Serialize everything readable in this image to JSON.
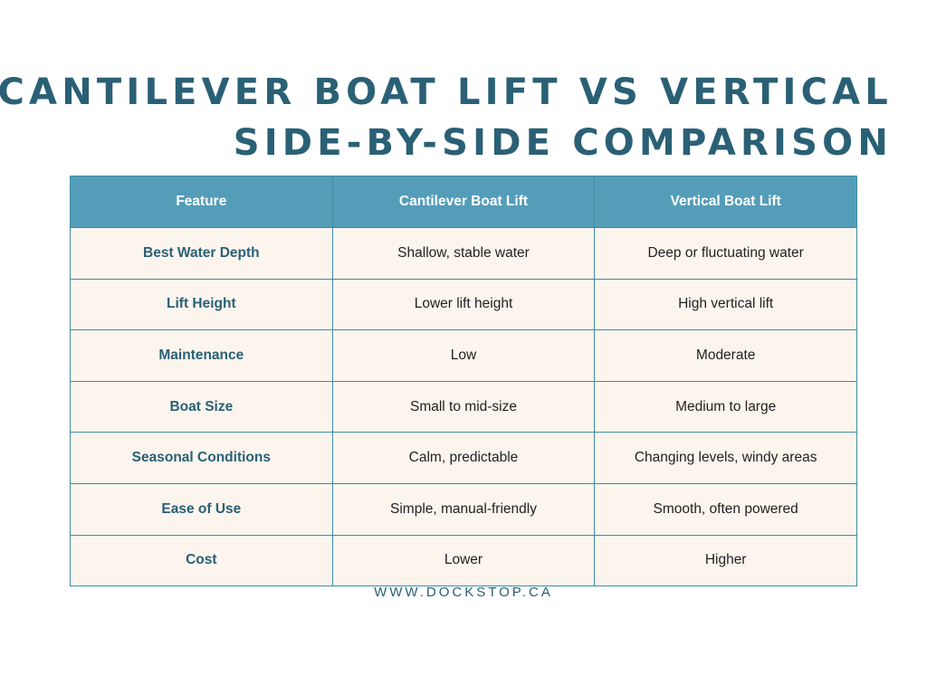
{
  "title": {
    "line1": "CANTILEVER BOAT LIFT VS VERTICAL",
    "line2": "SIDE-BY-SIDE COMPARISON"
  },
  "table": {
    "headers": [
      "Feature",
      "Cantilever Boat Lift",
      "Vertical Boat Lift"
    ],
    "rows": [
      [
        "Best Water Depth",
        "Shallow, stable water",
        "Deep or fluctuating water"
      ],
      [
        "Lift Height",
        "Lower lift height",
        "High vertical lift"
      ],
      [
        "Maintenance",
        "Low",
        "Moderate"
      ],
      [
        "Boat Size",
        "Small to mid-size",
        "Medium to large"
      ],
      [
        "Seasonal Conditions",
        "Calm, predictable",
        "Changing levels, windy areas"
      ],
      [
        "Ease of Use",
        "Simple, manual-friendly",
        "Smooth, often powered"
      ],
      [
        "Cost",
        "Lower",
        "Higher"
      ]
    ]
  },
  "footer": {
    "website": "WWW.DOCKSTOP.CA"
  },
  "colors": {
    "title": "#2a6075",
    "header_bg": "#549db8",
    "row_bg": "#fcf5ee",
    "border": "#3f8ca2"
  }
}
